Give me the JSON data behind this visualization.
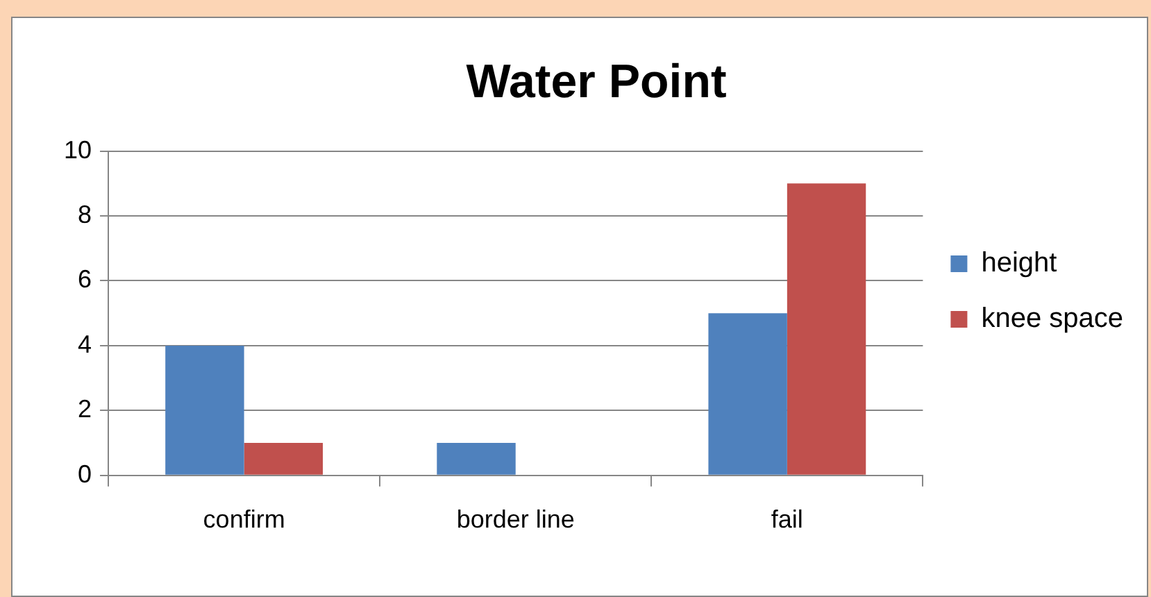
{
  "chart_data": {
    "type": "bar",
    "title": "Water Point",
    "categories": [
      "confirm",
      "border line",
      "fail"
    ],
    "series": [
      {
        "name": "height",
        "color": "#4f81bd",
        "values": [
          4,
          1,
          5
        ]
      },
      {
        "name": "knee space",
        "color": "#c0504d",
        "values": [
          1,
          0,
          9
        ]
      }
    ],
    "ylim": [
      0,
      10
    ],
    "yticks": [
      0,
      2,
      4,
      6,
      8,
      10
    ],
    "grid": "y",
    "legend": "right"
  }
}
